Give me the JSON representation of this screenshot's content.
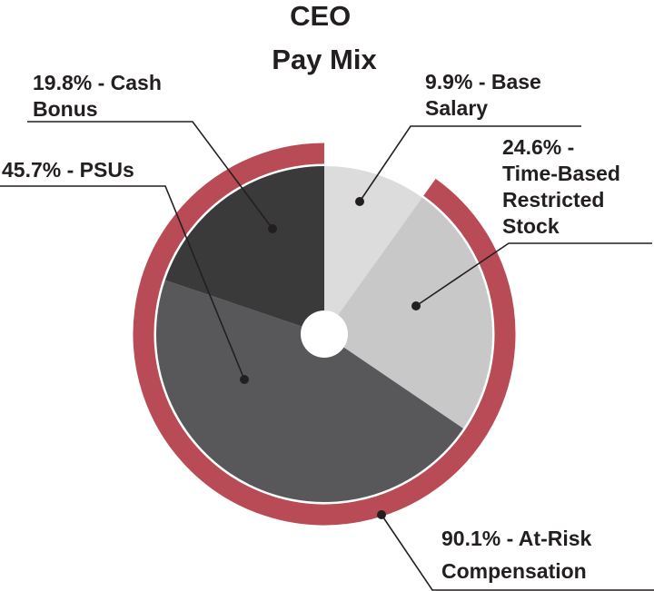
{
  "chart_data": {
    "type": "pie",
    "title_lines": [
      "CEO",
      "Pay Mix"
    ],
    "slices": [
      {
        "name": "base",
        "value": 9.9,
        "label_lines": [
          "9.9% - Base",
          "Salary"
        ],
        "color": "#dcdcdd"
      },
      {
        "name": "time-based",
        "value": 24.6,
        "label_lines": [
          "24.6% -",
          "Time-Based",
          "Restricted",
          "Stock"
        ],
        "color": "#c8c8c9"
      },
      {
        "name": "psus",
        "value": 45.7,
        "label_lines": [
          "45.7% - PSUs"
        ],
        "color": "#58585a"
      },
      {
        "name": "cash-bonus",
        "value": 19.8,
        "label_lines": [
          "19.8% - Cash",
          "Bonus"
        ],
        "color": "#3a3a3b"
      }
    ],
    "at_risk": {
      "value": 90.1,
      "label_lines": [
        "90.1% - At-Risk",
        "Compensation"
      ],
      "color": "#b84b55"
    },
    "legend": "none",
    "grid": false
  }
}
